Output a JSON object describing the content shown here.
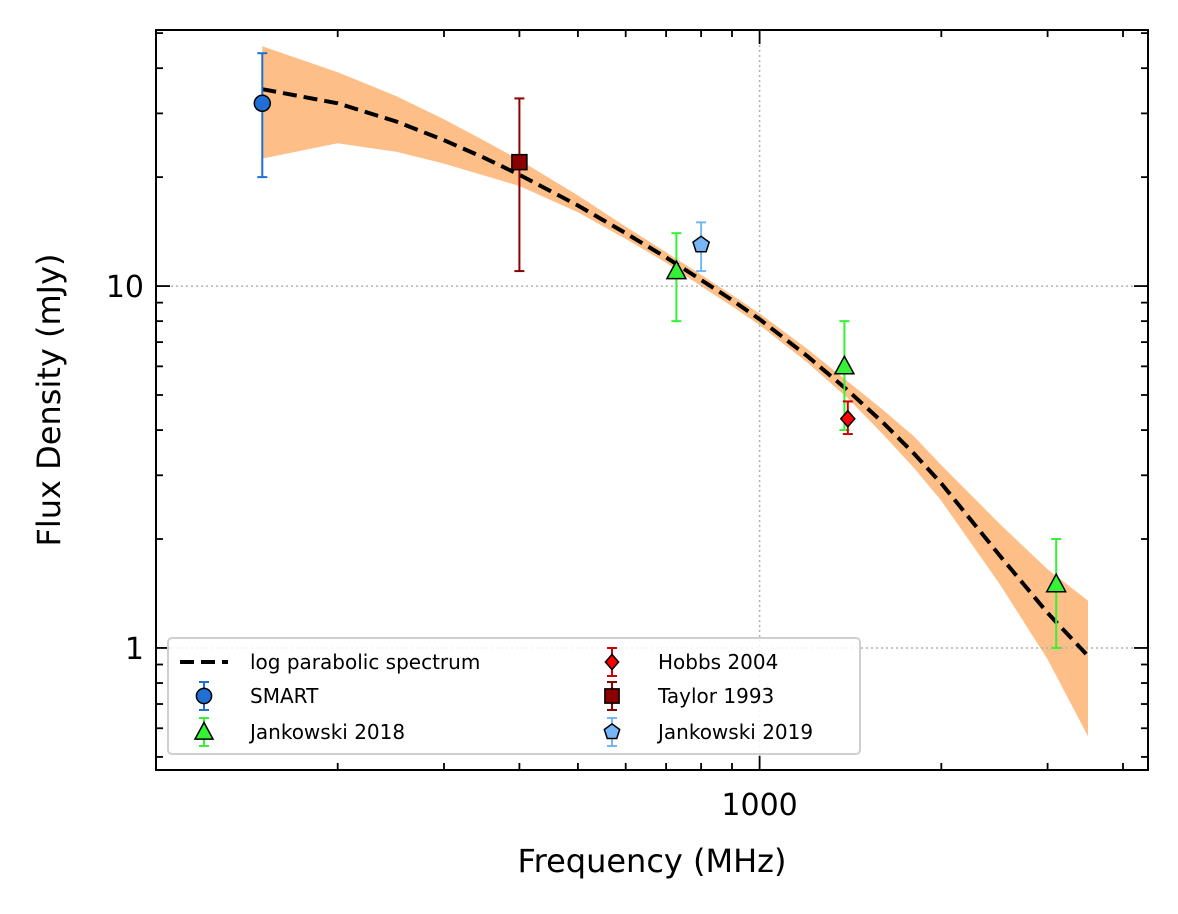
{
  "chart_data": {
    "type": "scatter",
    "title": "",
    "xlabel": "Frequency (MHz)",
    "ylabel": "Flux Density (mJy)",
    "x_scale": "log",
    "y_scale": "log",
    "xlim": [
      100,
      4400
    ],
    "ylim": [
      0.46,
      51
    ],
    "x_tick_labels": [
      {
        "value": 1000,
        "label": "1000"
      }
    ],
    "y_tick_labels": [
      {
        "value": 1,
        "label": "1"
      },
      {
        "value": 10,
        "label": "10"
      }
    ],
    "grid": true,
    "legend_position": "lower-left",
    "model": {
      "name": "log parabolic spectrum",
      "color": "#000000",
      "x": [
        150,
        200,
        250,
        300,
        350,
        400,
        500,
        600,
        700,
        800,
        900,
        1000,
        1200,
        1400,
        1600,
        1800,
        2000,
        2500,
        3000,
        3500
      ],
      "y": [
        35,
        32,
        28.5,
        25.3,
        22.6,
        20.3,
        16.7,
        14,
        12,
        10.4,
        9.15,
        8.1,
        6.4,
        5.15,
        4.2,
        3.45,
        2.85,
        1.8,
        1.25,
        0.95
      ],
      "band_color": "#fdbf87",
      "band_lower": [
        22.5,
        24.8,
        23.5,
        21.8,
        20.2,
        18.9,
        16,
        13.5,
        11.6,
        10,
        8.8,
        7.8,
        6.15,
        4.9,
        3.9,
        3.15,
        2.55,
        1.5,
        0.93,
        0.57
      ],
      "band_upper": [
        46,
        39,
        33.5,
        28.9,
        25.2,
        22.3,
        17.8,
        14.6,
        12.4,
        10.75,
        9.45,
        8.4,
        6.7,
        5.45,
        4.55,
        3.85,
        3.2,
        2.2,
        1.65,
        1.35
      ]
    },
    "series": [
      {
        "name": "SMART",
        "marker": "circle",
        "color": "#1f6fd6",
        "errcolor": "#1f6fd6",
        "points": [
          {
            "x": 150,
            "y": 32,
            "lo": 20,
            "hi": 44
          }
        ]
      },
      {
        "name": "Jankowski 2018",
        "marker": "triangle",
        "color": "#35f235",
        "errcolor": "#35f235",
        "points": [
          {
            "x": 728,
            "y": 11,
            "lo": 8,
            "hi": 14
          },
          {
            "x": 1382,
            "y": 6,
            "lo": 4,
            "hi": 8
          },
          {
            "x": 3100,
            "y": 1.5,
            "lo": 1,
            "hi": 2
          }
        ]
      },
      {
        "name": "Hobbs 2004",
        "marker": "diamond",
        "color": "#ff0000",
        "errcolor": "#cc0000",
        "points": [
          {
            "x": 1400,
            "y": 4.3,
            "lo": 3.9,
            "hi": 4.8
          }
        ]
      },
      {
        "name": "Taylor 1993",
        "marker": "square",
        "color": "#8b0000",
        "errcolor": "#8b0000",
        "points": [
          {
            "x": 400,
            "y": 22,
            "lo": 11,
            "hi": 33
          }
        ]
      },
      {
        "name": "Jankowski 2019",
        "marker": "pentagon",
        "color": "#76b6f5",
        "errcolor": "#76b6f5",
        "points": [
          {
            "x": 800,
            "y": 13,
            "lo": 11,
            "hi": 15
          }
        ]
      }
    ],
    "legend": {
      "col1": [
        "log parabolic spectrum",
        "SMART",
        "Jankowski 2018"
      ],
      "col2": [
        "Hobbs 2004",
        "Taylor 1993",
        "Jankowski 2019"
      ]
    }
  }
}
